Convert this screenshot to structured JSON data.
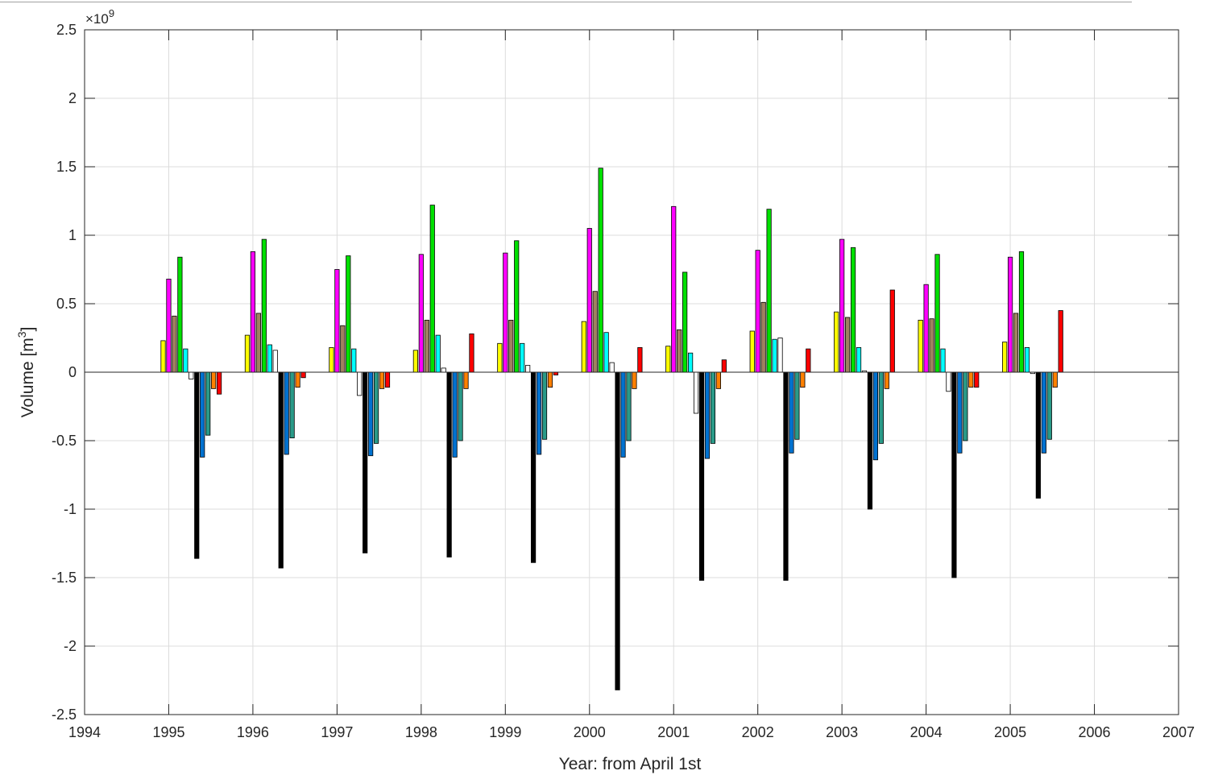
{
  "chart_data": {
    "type": "bar",
    "xlabel": "Year: from April 1st",
    "ylabel": "Volume [m",
    "ylabel_sup": "3",
    "ylabel_close": "]",
    "exponent_prefix": "×10",
    "exponent_power": "9",
    "xlim": [
      1994,
      2007
    ],
    "ylim": [
      -2.5,
      2.5
    ],
    "xticks": [
      1994,
      1995,
      1996,
      1997,
      1998,
      1999,
      2000,
      2001,
      2002,
      2003,
      2004,
      2005,
      2006,
      2007
    ],
    "yticks": [
      2.5,
      2,
      1.5,
      1,
      0.5,
      0,
      -0.5,
      -1,
      -1.5,
      -2,
      -2.5
    ],
    "ytick_labels": [
      "2.5",
      "2",
      "1.5",
      "1",
      "0.5",
      "0",
      "-0.5",
      "-1",
      "-1.5",
      "-2",
      "-2.5"
    ],
    "grid": true,
    "categories": [
      1995,
      1996,
      1997,
      1998,
      1999,
      2000,
      2001,
      2002,
      2003,
      2004,
      2005
    ],
    "series": [
      {
        "color": "#ffff00",
        "values": [
          0.23,
          0.27,
          0.18,
          0.16,
          0.21,
          0.37,
          0.19,
          0.3,
          0.44,
          0.38,
          0.22
        ]
      },
      {
        "color": "#ff00ff",
        "values": [
          0.68,
          0.88,
          0.75,
          0.86,
          0.87,
          1.05,
          1.21,
          0.89,
          0.97,
          0.64,
          0.84
        ]
      },
      {
        "color": "#a08060",
        "values": [
          0.41,
          0.43,
          0.34,
          0.38,
          0.38,
          0.59,
          0.31,
          0.51,
          0.4,
          0.39,
          0.43
        ]
      },
      {
        "color": "#00e000",
        "values": [
          0.84,
          0.97,
          0.85,
          1.22,
          0.96,
          1.49,
          0.73,
          1.19,
          0.91,
          0.86,
          0.88
        ]
      },
      {
        "color": "#00ffff",
        "values": [
          0.17,
          0.2,
          0.17,
          0.27,
          0.21,
          0.29,
          0.14,
          0.24,
          0.18,
          0.17,
          0.18
        ]
      },
      {
        "color": "#ffffff",
        "values": [
          -0.05,
          0.16,
          -0.17,
          0.03,
          0.05,
          0.07,
          -0.3,
          0.25,
          0.01,
          -0.14,
          -0.01
        ]
      },
      {
        "color": "#000000",
        "values": [
          -1.36,
          -1.43,
          -1.32,
          -1.35,
          -1.39,
          -2.32,
          -1.52,
          -1.52,
          -1.0,
          -1.5,
          -0.92
        ]
      },
      {
        "color": "#0072d0",
        "values": [
          -0.62,
          -0.6,
          -0.61,
          -0.62,
          -0.6,
          -0.62,
          -0.63,
          -0.59,
          -0.64,
          -0.59,
          -0.59
        ]
      },
      {
        "color": "#2a9a88",
        "values": [
          -0.46,
          -0.48,
          -0.52,
          -0.5,
          -0.49,
          -0.5,
          -0.52,
          -0.49,
          -0.52,
          -0.5,
          -0.49
        ]
      },
      {
        "color": "#ff8000",
        "values": [
          -0.12,
          -0.11,
          -0.12,
          -0.12,
          -0.11,
          -0.12,
          -0.12,
          -0.11,
          -0.12,
          -0.11,
          -0.11
        ]
      },
      {
        "color": "#ff0000",
        "values": [
          -0.16,
          -0.04,
          -0.11,
          0.28,
          -0.02,
          0.18,
          0.09,
          0.17,
          0.6,
          -0.11,
          0.45
        ]
      }
    ]
  }
}
